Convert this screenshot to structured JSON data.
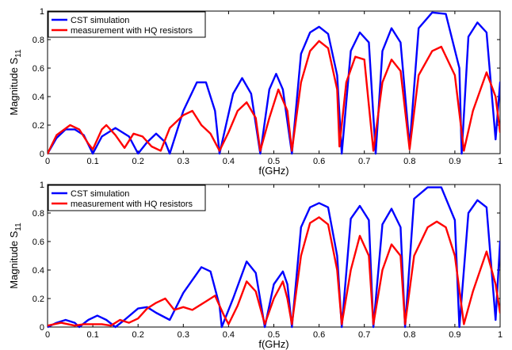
{
  "chart_data": [
    {
      "type": "line",
      "xlabel": "f(GHz)",
      "ylabel": "Magnitude S",
      "ylabel_sub": "11",
      "xlim": [
        0,
        1
      ],
      "ylim": [
        0,
        1
      ],
      "xticks": [
        "0",
        "0.1",
        "0.2",
        "0.3",
        "0.4",
        "0.5",
        "0.6",
        "0.7",
        "0.8",
        "0.9",
        "1"
      ],
      "yticks": [
        "0",
        "0.2",
        "0.4",
        "0.6",
        "0.8",
        "1"
      ],
      "grid": false,
      "legend_position": "top-left",
      "series": [
        {
          "name": "CST simulation",
          "color": "#0000ff",
          "points": [
            [
              0,
              0
            ],
            [
              0.02,
              0.11
            ],
            [
              0.04,
              0.17
            ],
            [
              0.06,
              0.17
            ],
            [
              0.08,
              0.13
            ],
            [
              0.1,
              0
            ],
            [
              0.12,
              0.12
            ],
            [
              0.15,
              0.18
            ],
            [
              0.18,
              0.12
            ],
            [
              0.2,
              0
            ],
            [
              0.22,
              0.08
            ],
            [
              0.24,
              0.14
            ],
            [
              0.26,
              0.08
            ],
            [
              0.27,
              0
            ],
            [
              0.3,
              0.3
            ],
            [
              0.33,
              0.5
            ],
            [
              0.35,
              0.5
            ],
            [
              0.37,
              0.3
            ],
            [
              0.38,
              0
            ],
            [
              0.41,
              0.42
            ],
            [
              0.43,
              0.53
            ],
            [
              0.45,
              0.42
            ],
            [
              0.47,
              0
            ],
            [
              0.49,
              0.45
            ],
            [
              0.505,
              0.56
            ],
            [
              0.52,
              0.45
            ],
            [
              0.54,
              0
            ],
            [
              0.56,
              0.7
            ],
            [
              0.58,
              0.85
            ],
            [
              0.6,
              0.89
            ],
            [
              0.62,
              0.84
            ],
            [
              0.64,
              0.55
            ],
            [
              0.65,
              0
            ],
            [
              0.67,
              0.72
            ],
            [
              0.69,
              0.85
            ],
            [
              0.71,
              0.78
            ],
            [
              0.725,
              0
            ],
            [
              0.74,
              0.72
            ],
            [
              0.76,
              0.88
            ],
            [
              0.78,
              0.78
            ],
            [
              0.8,
              0.05
            ],
            [
              0.82,
              0.88
            ],
            [
              0.85,
              0.99
            ],
            [
              0.88,
              0.98
            ],
            [
              0.91,
              0.6
            ],
            [
              0.915,
              0
            ],
            [
              0.93,
              0.82
            ],
            [
              0.95,
              0.92
            ],
            [
              0.97,
              0.85
            ],
            [
              0.99,
              0.1
            ],
            [
              1,
              0.5
            ]
          ]
        },
        {
          "name": "measurement with HQ resistors",
          "color": "#ff0000",
          "points": [
            [
              0,
              0
            ],
            [
              0.02,
              0.13
            ],
            [
              0.05,
              0.2
            ],
            [
              0.07,
              0.17
            ],
            [
              0.09,
              0.07
            ],
            [
              0.1,
              0.03
            ],
            [
              0.12,
              0.17
            ],
            [
              0.13,
              0.2
            ],
            [
              0.15,
              0.13
            ],
            [
              0.17,
              0.04
            ],
            [
              0.19,
              0.14
            ],
            [
              0.21,
              0.12
            ],
            [
              0.23,
              0.05
            ],
            [
              0.25,
              0.02
            ],
            [
              0.27,
              0.18
            ],
            [
              0.3,
              0.27
            ],
            [
              0.32,
              0.3
            ],
            [
              0.34,
              0.2
            ],
            [
              0.36,
              0.14
            ],
            [
              0.38,
              0.02
            ],
            [
              0.4,
              0.15
            ],
            [
              0.42,
              0.3
            ],
            [
              0.44,
              0.36
            ],
            [
              0.46,
              0.25
            ],
            [
              0.47,
              0.02
            ],
            [
              0.49,
              0.25
            ],
            [
              0.51,
              0.45
            ],
            [
              0.53,
              0.3
            ],
            [
              0.54,
              0.02
            ],
            [
              0.56,
              0.5
            ],
            [
              0.58,
              0.72
            ],
            [
              0.6,
              0.79
            ],
            [
              0.62,
              0.74
            ],
            [
              0.64,
              0.45
            ],
            [
              0.645,
              0.05
            ],
            [
              0.66,
              0.5
            ],
            [
              0.68,
              0.68
            ],
            [
              0.7,
              0.66
            ],
            [
              0.72,
              0.02
            ],
            [
              0.74,
              0.5
            ],
            [
              0.76,
              0.66
            ],
            [
              0.78,
              0.58
            ],
            [
              0.8,
              0.03
            ],
            [
              0.82,
              0.55
            ],
            [
              0.85,
              0.72
            ],
            [
              0.87,
              0.75
            ],
            [
              0.9,
              0.55
            ],
            [
              0.92,
              0.02
            ],
            [
              0.94,
              0.3
            ],
            [
              0.97,
              0.57
            ],
            [
              0.99,
              0.4
            ],
            [
              1,
              0.15
            ]
          ]
        }
      ]
    },
    {
      "type": "line",
      "xlabel": "f(GHz)",
      "ylabel": "Magnitude S",
      "ylabel_sub": "11",
      "xlim": [
        0,
        1
      ],
      "ylim": [
        0,
        1
      ],
      "xticks": [
        "0",
        "0.1",
        "0.2",
        "0.3",
        "0.4",
        "0.5",
        "0.6",
        "0.7",
        "0.8",
        "0.9",
        "1"
      ],
      "yticks": [
        "0",
        "0.2",
        "0.4",
        "0.6",
        "0.8",
        "1"
      ],
      "grid": false,
      "legend_position": "top-left",
      "series": [
        {
          "name": "CST simulation",
          "color": "#0000ff",
          "points": [
            [
              0,
              0
            ],
            [
              0.02,
              0.03
            ],
            [
              0.04,
              0.05
            ],
            [
              0.06,
              0.03
            ],
            [
              0.07,
              0
            ],
            [
              0.09,
              0.05
            ],
            [
              0.11,
              0.08
            ],
            [
              0.13,
              0.05
            ],
            [
              0.15,
              0
            ],
            [
              0.17,
              0.05
            ],
            [
              0.2,
              0.13
            ],
            [
              0.22,
              0.14
            ],
            [
              0.24,
              0.1
            ],
            [
              0.27,
              0.05
            ],
            [
              0.3,
              0.24
            ],
            [
              0.34,
              0.42
            ],
            [
              0.36,
              0.39
            ],
            [
              0.38,
              0.15
            ],
            [
              0.385,
              0
            ],
            [
              0.41,
              0.2
            ],
            [
              0.44,
              0.46
            ],
            [
              0.46,
              0.38
            ],
            [
              0.48,
              0
            ],
            [
              0.5,
              0.3
            ],
            [
              0.52,
              0.39
            ],
            [
              0.53,
              0.3
            ],
            [
              0.54,
              0
            ],
            [
              0.56,
              0.7
            ],
            [
              0.58,
              0.84
            ],
            [
              0.6,
              0.87
            ],
            [
              0.62,
              0.84
            ],
            [
              0.64,
              0.5
            ],
            [
              0.65,
              0
            ],
            [
              0.67,
              0.76
            ],
            [
              0.69,
              0.85
            ],
            [
              0.71,
              0.75
            ],
            [
              0.72,
              0
            ],
            [
              0.74,
              0.72
            ],
            [
              0.76,
              0.83
            ],
            [
              0.78,
              0.7
            ],
            [
              0.79,
              0
            ],
            [
              0.81,
              0.9
            ],
            [
              0.84,
              0.98
            ],
            [
              0.87,
              0.98
            ],
            [
              0.9,
              0.75
            ],
            [
              0.91,
              0
            ],
            [
              0.93,
              0.8
            ],
            [
              0.95,
              0.89
            ],
            [
              0.97,
              0.84
            ],
            [
              0.99,
              0.05
            ],
            [
              1,
              0.6
            ]
          ]
        },
        {
          "name": "measurement with HQ resistors",
          "color": "#ff0000",
          "points": [
            [
              0,
              0.01
            ],
            [
              0.03,
              0.03
            ],
            [
              0.06,
              0.01
            ],
            [
              0.08,
              0.02
            ],
            [
              0.1,
              0.02
            ],
            [
              0.12,
              0.02
            ],
            [
              0.14,
              0.01
            ],
            [
              0.16,
              0.05
            ],
            [
              0.18,
              0.03
            ],
            [
              0.2,
              0.06
            ],
            [
              0.22,
              0.13
            ],
            [
              0.24,
              0.17
            ],
            [
              0.26,
              0.2
            ],
            [
              0.28,
              0.12
            ],
            [
              0.3,
              0.14
            ],
            [
              0.32,
              0.12
            ],
            [
              0.35,
              0.18
            ],
            [
              0.37,
              0.22
            ],
            [
              0.39,
              0.08
            ],
            [
              0.4,
              0.02
            ],
            [
              0.42,
              0.15
            ],
            [
              0.44,
              0.32
            ],
            [
              0.46,
              0.25
            ],
            [
              0.48,
              0.02
            ],
            [
              0.5,
              0.2
            ],
            [
              0.52,
              0.32
            ],
            [
              0.53,
              0.2
            ],
            [
              0.54,
              0.02
            ],
            [
              0.56,
              0.5
            ],
            [
              0.58,
              0.73
            ],
            [
              0.6,
              0.77
            ],
            [
              0.62,
              0.72
            ],
            [
              0.64,
              0.4
            ],
            [
              0.65,
              0.02
            ],
            [
              0.67,
              0.4
            ],
            [
              0.69,
              0.64
            ],
            [
              0.71,
              0.5
            ],
            [
              0.72,
              0.02
            ],
            [
              0.74,
              0.4
            ],
            [
              0.76,
              0.58
            ],
            [
              0.78,
              0.5
            ],
            [
              0.79,
              0.02
            ],
            [
              0.81,
              0.5
            ],
            [
              0.84,
              0.7
            ],
            [
              0.86,
              0.74
            ],
            [
              0.88,
              0.7
            ],
            [
              0.9,
              0.5
            ],
            [
              0.92,
              0.02
            ],
            [
              0.94,
              0.25
            ],
            [
              0.97,
              0.53
            ],
            [
              0.99,
              0.3
            ],
            [
              1,
              0.1
            ]
          ]
        }
      ]
    }
  ]
}
